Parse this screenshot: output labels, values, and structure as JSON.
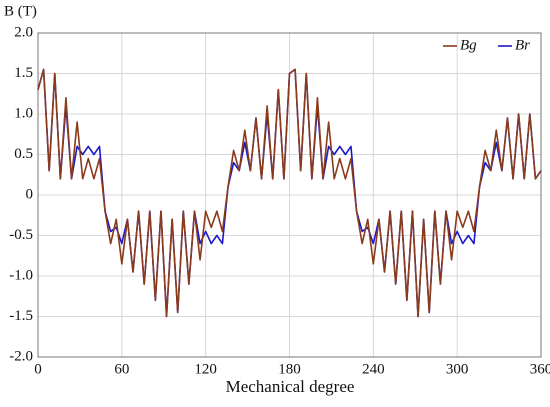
{
  "chart_data": {
    "type": "line",
    "y_label": "B (T)",
    "x_label": "Mechanical degree",
    "x": [
      0,
      4,
      8,
      12,
      16,
      20,
      24,
      28,
      32,
      36,
      40,
      44,
      48,
      52,
      56,
      60,
      64,
      68,
      72,
      76,
      80,
      84,
      88,
      92,
      96,
      100,
      104,
      108,
      112,
      116,
      120,
      124,
      128,
      132,
      136,
      140,
      144,
      148,
      152,
      156,
      160,
      164,
      168,
      172,
      176,
      180,
      184,
      188,
      192,
      196,
      200,
      204,
      208,
      212,
      216,
      220,
      224,
      228,
      232,
      236,
      240,
      244,
      248,
      252,
      256,
      260,
      264,
      268,
      272,
      276,
      280,
      284,
      288,
      292,
      296,
      300,
      304,
      308,
      312,
      316,
      320,
      324,
      328,
      332,
      336,
      340,
      344,
      348,
      352,
      356,
      360
    ],
    "series": [
      {
        "name": "Bg",
        "color": "#8b3a1a",
        "values": [
          1.3,
          1.55,
          0.3,
          1.5,
          0.2,
          1.2,
          0.2,
          0.9,
          0.2,
          0.45,
          0.2,
          0.45,
          -0.2,
          -0.6,
          -0.3,
          -0.85,
          -0.3,
          -0.95,
          -0.2,
          -1.1,
          -0.2,
          -1.3,
          -0.2,
          -1.5,
          -0.3,
          -1.45,
          -0.2,
          -1.1,
          -0.2,
          -0.8,
          -0.2,
          -0.4,
          -0.2,
          -0.45,
          0.1,
          0.55,
          0.3,
          0.8,
          0.3,
          0.95,
          0.2,
          1.1,
          0.2,
          1.3,
          0.2,
          1.5,
          1.55,
          0.3,
          1.5,
          0.2,
          1.2,
          0.2,
          0.9,
          0.2,
          0.45,
          0.2,
          0.45,
          -0.2,
          -0.6,
          -0.3,
          -0.85,
          -0.3,
          -0.95,
          -0.2,
          -1.1,
          -0.2,
          -1.3,
          -0.2,
          -1.5,
          -0.3,
          -1.45,
          -0.2,
          -1.1,
          -0.2,
          -0.8,
          -0.2,
          -0.4,
          -0.2,
          -0.45,
          0.1,
          0.55,
          0.3,
          0.8,
          0.3,
          0.95,
          0.2,
          1.0,
          0.2,
          1.0,
          0.2,
          0.3
        ]
      },
      {
        "name": "Br",
        "color": "#1a1acc",
        "values": [
          1.3,
          1.55,
          0.3,
          1.5,
          0.2,
          1.1,
          0.2,
          0.6,
          0.5,
          0.6,
          0.5,
          0.6,
          -0.2,
          -0.45,
          -0.4,
          -0.6,
          -0.3,
          -0.95,
          -0.2,
          -1.1,
          -0.2,
          -1.3,
          -0.2,
          -1.5,
          -0.3,
          -1.45,
          -0.2,
          -1.1,
          -0.2,
          -0.6,
          -0.45,
          -0.6,
          -0.5,
          -0.6,
          0.1,
          0.4,
          0.3,
          0.65,
          0.3,
          0.95,
          0.2,
          1.0,
          0.2,
          1.3,
          0.2,
          1.5,
          1.55,
          0.3,
          1.5,
          0.2,
          1.1,
          0.2,
          0.6,
          0.5,
          0.6,
          0.5,
          0.6,
          -0.2,
          -0.45,
          -0.4,
          -0.6,
          -0.3,
          -0.95,
          -0.2,
          -1.1,
          -0.2,
          -1.3,
          -0.2,
          -1.5,
          -0.3,
          -1.45,
          -0.2,
          -1.1,
          -0.2,
          -0.6,
          -0.45,
          -0.6,
          -0.5,
          -0.6,
          0.1,
          0.4,
          0.3,
          0.65,
          0.3,
          0.95,
          0.2,
          1.0,
          0.2,
          1.0,
          0.2,
          0.3
        ]
      }
    ],
    "xlim": [
      0,
      360
    ],
    "xticks": [
      0,
      60,
      120,
      180,
      240,
      300,
      360
    ],
    "ylim": [
      -2,
      2
    ],
    "yticks": [
      {
        "value": -2,
        "label": "-2.0"
      },
      -1.5,
      {
        "value": -1,
        "label": "-1.0"
      },
      -0.5,
      0,
      0.5,
      {
        "value": 1,
        "label": "1.0"
      },
      1.5,
      {
        "value": 2,
        "label": "2.0"
      }
    ],
    "grid": true,
    "legend": "upper right"
  }
}
